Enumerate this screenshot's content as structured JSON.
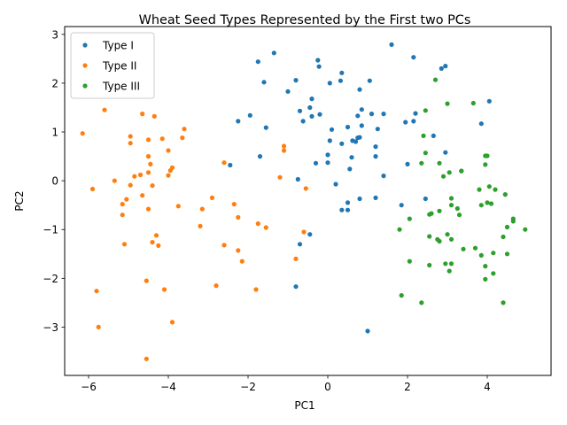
{
  "chart_data": {
    "type": "scatter",
    "title": "Wheat Seed Types Represented by the First two PCs",
    "xlabel": "PC1",
    "ylabel": "PC2",
    "xlim": [
      -6.6,
      5.6
    ],
    "ylim": [
      -3.99,
      3.16
    ],
    "xticks": [
      -6,
      -4,
      -2,
      0,
      2,
      4
    ],
    "yticks": [
      -3,
      -2,
      -1,
      0,
      1,
      2,
      3
    ],
    "xtick_labels": [
      "−6",
      "−4",
      "−2",
      "0",
      "2",
      "4"
    ],
    "ytick_labels": [
      "−3",
      "−2",
      "−1",
      "0",
      "1",
      "2",
      "3"
    ],
    "grid": false,
    "legend": "upper-left",
    "series": [
      {
        "name": "Type I",
        "color": "#1f77b4",
        "points": [
          [
            -1.75,
            2.44
          ],
          [
            -1.35,
            2.62
          ],
          [
            -1.6,
            2.02
          ],
          [
            -0.8,
            2.06
          ],
          [
            -0.25,
            2.47
          ],
          [
            -0.22,
            2.34
          ],
          [
            0.35,
            2.21
          ],
          [
            0.32,
            2.05
          ],
          [
            0.05,
            2.0
          ],
          [
            1.05,
            2.05
          ],
          [
            0.8,
            1.87
          ],
          [
            -1.0,
            1.83
          ],
          [
            1.6,
            2.79
          ],
          [
            2.15,
            2.53
          ],
          [
            2.85,
            2.3
          ],
          [
            2.95,
            2.35
          ],
          [
            -0.4,
            1.68
          ],
          [
            -0.7,
            1.43
          ],
          [
            -0.45,
            1.5
          ],
          [
            -0.4,
            1.32
          ],
          [
            -0.2,
            1.36
          ],
          [
            -0.62,
            1.22
          ],
          [
            -1.95,
            1.34
          ],
          [
            -2.25,
            1.22
          ],
          [
            -1.55,
            1.09
          ],
          [
            0.1,
            1.05
          ],
          [
            0.85,
            1.46
          ],
          [
            0.75,
            1.33
          ],
          [
            1.1,
            1.37
          ],
          [
            1.4,
            1.37
          ],
          [
            0.5,
            1.1
          ],
          [
            0.85,
            1.13
          ],
          [
            1.25,
            1.06
          ],
          [
            0.05,
            0.82
          ],
          [
            0.35,
            0.76
          ],
          [
            0.75,
            0.88
          ],
          [
            0.8,
            0.89
          ],
          [
            0.62,
            0.82
          ],
          [
            0.7,
            0.8
          ],
          [
            1.2,
            0.7
          ],
          [
            -1.7,
            0.5
          ],
          [
            0.0,
            0.53
          ],
          [
            1.2,
            0.5
          ],
          [
            -0.3,
            0.36
          ],
          [
            0.0,
            0.37
          ],
          [
            0.6,
            0.48
          ],
          [
            0.55,
            0.24
          ],
          [
            1.4,
            0.1
          ],
          [
            -2.45,
            0.32
          ],
          [
            0.2,
            -0.07
          ],
          [
            0.5,
            -0.45
          ],
          [
            0.35,
            -0.6
          ],
          [
            0.5,
            -0.6
          ],
          [
            0.8,
            -0.37
          ],
          [
            1.2,
            -0.35
          ],
          [
            -0.75,
            0.03
          ],
          [
            2.0,
            0.34
          ],
          [
            1.95,
            1.2
          ],
          [
            2.2,
            1.38
          ],
          [
            2.15,
            1.22
          ],
          [
            2.65,
            0.92
          ],
          [
            2.95,
            0.58
          ],
          [
            4.05,
            1.63
          ],
          [
            3.85,
            1.17
          ],
          [
            1.85,
            -0.5
          ],
          [
            2.45,
            -0.37
          ],
          [
            -0.45,
            -1.1
          ],
          [
            -0.7,
            -1.3
          ],
          [
            -0.8,
            -2.17
          ],
          [
            1.0,
            -3.08
          ]
        ]
      },
      {
        "name": "Type II",
        "color": "#ff7f0e",
        "points": [
          [
            -5.6,
            1.45
          ],
          [
            -6.15,
            0.97
          ],
          [
            -4.65,
            1.37
          ],
          [
            -4.35,
            1.32
          ],
          [
            -3.6,
            1.06
          ],
          [
            -3.65,
            0.88
          ],
          [
            -4.95,
            0.91
          ],
          [
            -4.95,
            0.77
          ],
          [
            -4.5,
            0.84
          ],
          [
            -4.15,
            0.86
          ],
          [
            -4.0,
            0.62
          ],
          [
            -4.5,
            0.5
          ],
          [
            -4.45,
            0.34
          ],
          [
            -3.9,
            0.27
          ],
          [
            -3.95,
            0.21
          ],
          [
            -4.0,
            0.11
          ],
          [
            -4.5,
            0.17
          ],
          [
            -4.7,
            0.12
          ],
          [
            -4.85,
            0.09
          ],
          [
            -5.35,
            0.0
          ],
          [
            -4.95,
            -0.09
          ],
          [
            -4.4,
            -0.1
          ],
          [
            -5.9,
            -0.17
          ],
          [
            -4.65,
            -0.3
          ],
          [
            -5.05,
            -0.38
          ],
          [
            -5.15,
            -0.48
          ],
          [
            -5.15,
            -0.7
          ],
          [
            -4.5,
            -0.58
          ],
          [
            -3.75,
            -0.52
          ],
          [
            -3.15,
            -0.58
          ],
          [
            -2.9,
            -0.35
          ],
          [
            -2.6,
            0.37
          ],
          [
            -2.35,
            -0.48
          ],
          [
            -2.25,
            -0.75
          ],
          [
            -4.3,
            -1.12
          ],
          [
            -4.25,
            -1.33
          ],
          [
            -4.4,
            -1.26
          ],
          [
            -5.1,
            -1.3
          ],
          [
            -3.2,
            -0.93
          ],
          [
            -2.6,
            -1.32
          ],
          [
            -2.25,
            -1.43
          ],
          [
            -2.15,
            -1.65
          ],
          [
            -1.75,
            -0.88
          ],
          [
            -1.55,
            -0.96
          ],
          [
            -1.2,
            0.07
          ],
          [
            -1.1,
            0.71
          ],
          [
            -1.1,
            0.62
          ],
          [
            -0.55,
            -0.16
          ],
          [
            -0.6,
            -1.05
          ],
          [
            -0.8,
            -1.6
          ],
          [
            -1.8,
            -2.23
          ],
          [
            -2.8,
            -2.15
          ],
          [
            -4.1,
            -2.23
          ],
          [
            -4.55,
            -2.05
          ],
          [
            -5.8,
            -2.26
          ],
          [
            -3.9,
            -2.9
          ],
          [
            -5.75,
            -3.0
          ],
          [
            -4.55,
            -3.65
          ]
        ]
      },
      {
        "name": "Type III",
        "color": "#2ca02c",
        "points": [
          [
            2.7,
            2.07
          ],
          [
            3.0,
            1.58
          ],
          [
            3.65,
            1.59
          ],
          [
            2.45,
            1.44
          ],
          [
            2.4,
            0.92
          ],
          [
            2.45,
            0.57
          ],
          [
            2.35,
            0.36
          ],
          [
            2.8,
            0.36
          ],
          [
            2.9,
            0.09
          ],
          [
            3.05,
            0.17
          ],
          [
            3.35,
            0.2
          ],
          [
            3.35,
            0.2
          ],
          [
            3.95,
            0.51
          ],
          [
            4.0,
            0.51
          ],
          [
            3.95,
            0.33
          ],
          [
            4.05,
            -0.12
          ],
          [
            4.2,
            -0.18
          ],
          [
            3.8,
            -0.18
          ],
          [
            4.45,
            -0.28
          ],
          [
            4.0,
            -0.45
          ],
          [
            4.1,
            -0.47
          ],
          [
            3.85,
            -0.5
          ],
          [
            3.1,
            -0.36
          ],
          [
            3.1,
            -0.5
          ],
          [
            2.8,
            -0.62
          ],
          [
            2.6,
            -0.67
          ],
          [
            2.55,
            -0.69
          ],
          [
            3.3,
            -0.7
          ],
          [
            2.05,
            -0.78
          ],
          [
            3.25,
            -0.57
          ],
          [
            4.65,
            -0.78
          ],
          [
            4.65,
            -0.83
          ],
          [
            4.95,
            -1.0
          ],
          [
            4.5,
            -0.95
          ],
          [
            1.8,
            -1.0
          ],
          [
            2.55,
            -1.14
          ],
          [
            2.75,
            -1.2
          ],
          [
            2.8,
            -1.24
          ],
          [
            3.0,
            -1.1
          ],
          [
            3.1,
            -1.2
          ],
          [
            3.4,
            -1.4
          ],
          [
            3.7,
            -1.38
          ],
          [
            3.85,
            -1.53
          ],
          [
            4.15,
            -1.48
          ],
          [
            4.4,
            -1.15
          ],
          [
            4.5,
            -1.5
          ],
          [
            2.05,
            -1.65
          ],
          [
            2.55,
            -1.73
          ],
          [
            2.95,
            -1.7
          ],
          [
            3.1,
            -1.7
          ],
          [
            3.05,
            -1.85
          ],
          [
            3.95,
            -1.75
          ],
          [
            4.15,
            -1.9
          ],
          [
            3.95,
            -2.02
          ],
          [
            1.85,
            -2.35
          ],
          [
            2.35,
            -2.5
          ],
          [
            4.4,
            -2.5
          ]
        ]
      }
    ]
  }
}
